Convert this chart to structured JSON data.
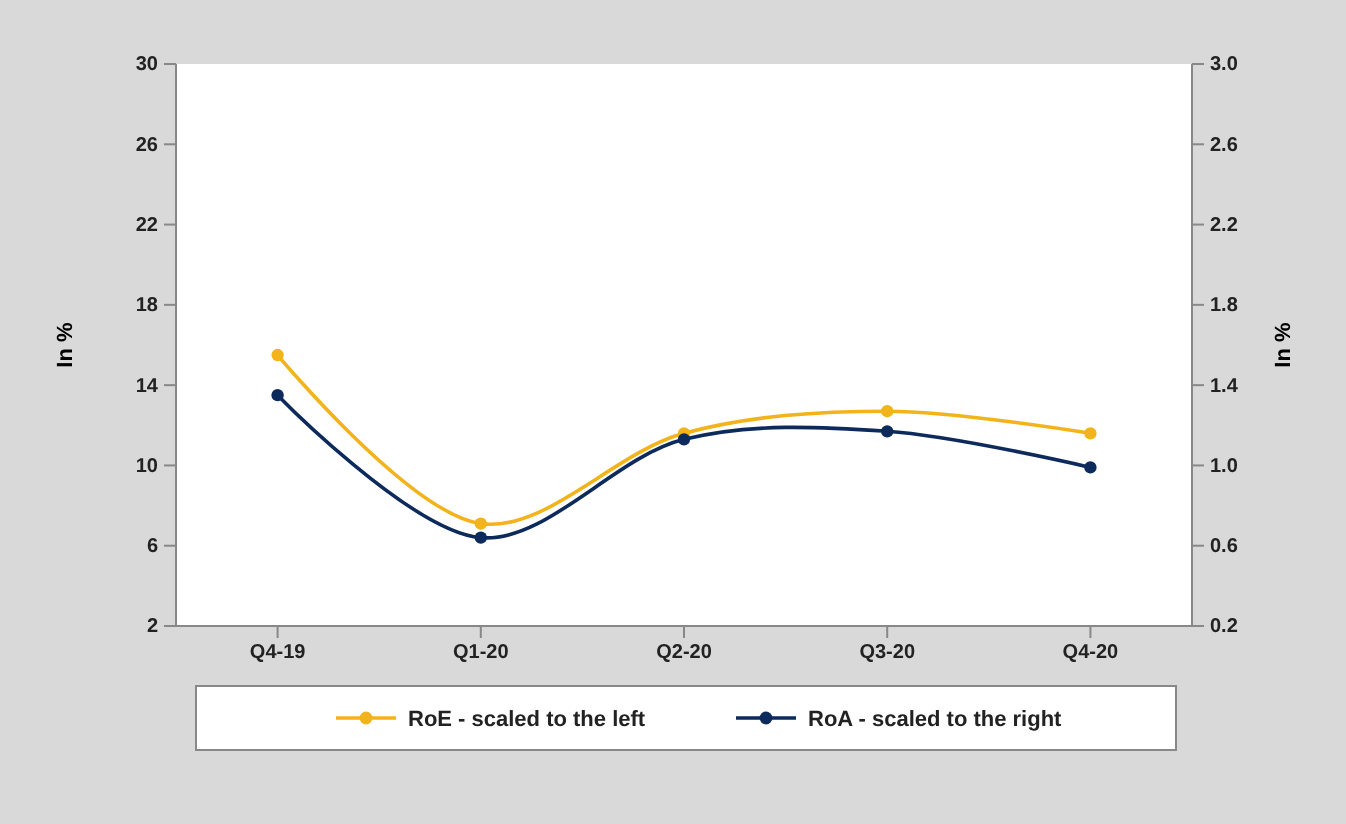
{
  "chart_data": {
    "type": "line",
    "categories": [
      "Q4-19",
      "Q1-20",
      "Q2-20",
      "Q3-20",
      "Q4-20"
    ],
    "series": [
      {
        "name": "RoE - scaled to the left",
        "color": "#f2b31b",
        "values": [
          15.5,
          7.1,
          11.6,
          12.7,
          11.6
        ]
      },
      {
        "name": "RoA - scaled to the right",
        "color": "#0d2a5c",
        "values": [
          1.35,
          0.64,
          1.13,
          1.17,
          0.99
        ],
        "axis": "y2"
      }
    ],
    "ylabel": "In %",
    "y2label": "In %",
    "ylim": [
      2,
      30
    ],
    "yticks": [
      2,
      6,
      10,
      14,
      18,
      22,
      26,
      30
    ],
    "y2lim": [
      0.2,
      3.0
    ],
    "y2ticks": [
      {
        "value": 0.2,
        "label": "0.2"
      },
      {
        "value": 0.6,
        "label": "0.6"
      },
      {
        "value": 1.0,
        "label": "1.0"
      },
      {
        "value": 1.4,
        "label": "1.4"
      },
      {
        "value": 1.8,
        "label": "1.8"
      },
      {
        "value": 2.2,
        "label": "2.2"
      },
      {
        "value": 2.6,
        "label": "2.6"
      },
      {
        "value": 3.0,
        "label": "3.0"
      }
    ],
    "legend": "bottom",
    "marker": "circle",
    "grid": false
  }
}
